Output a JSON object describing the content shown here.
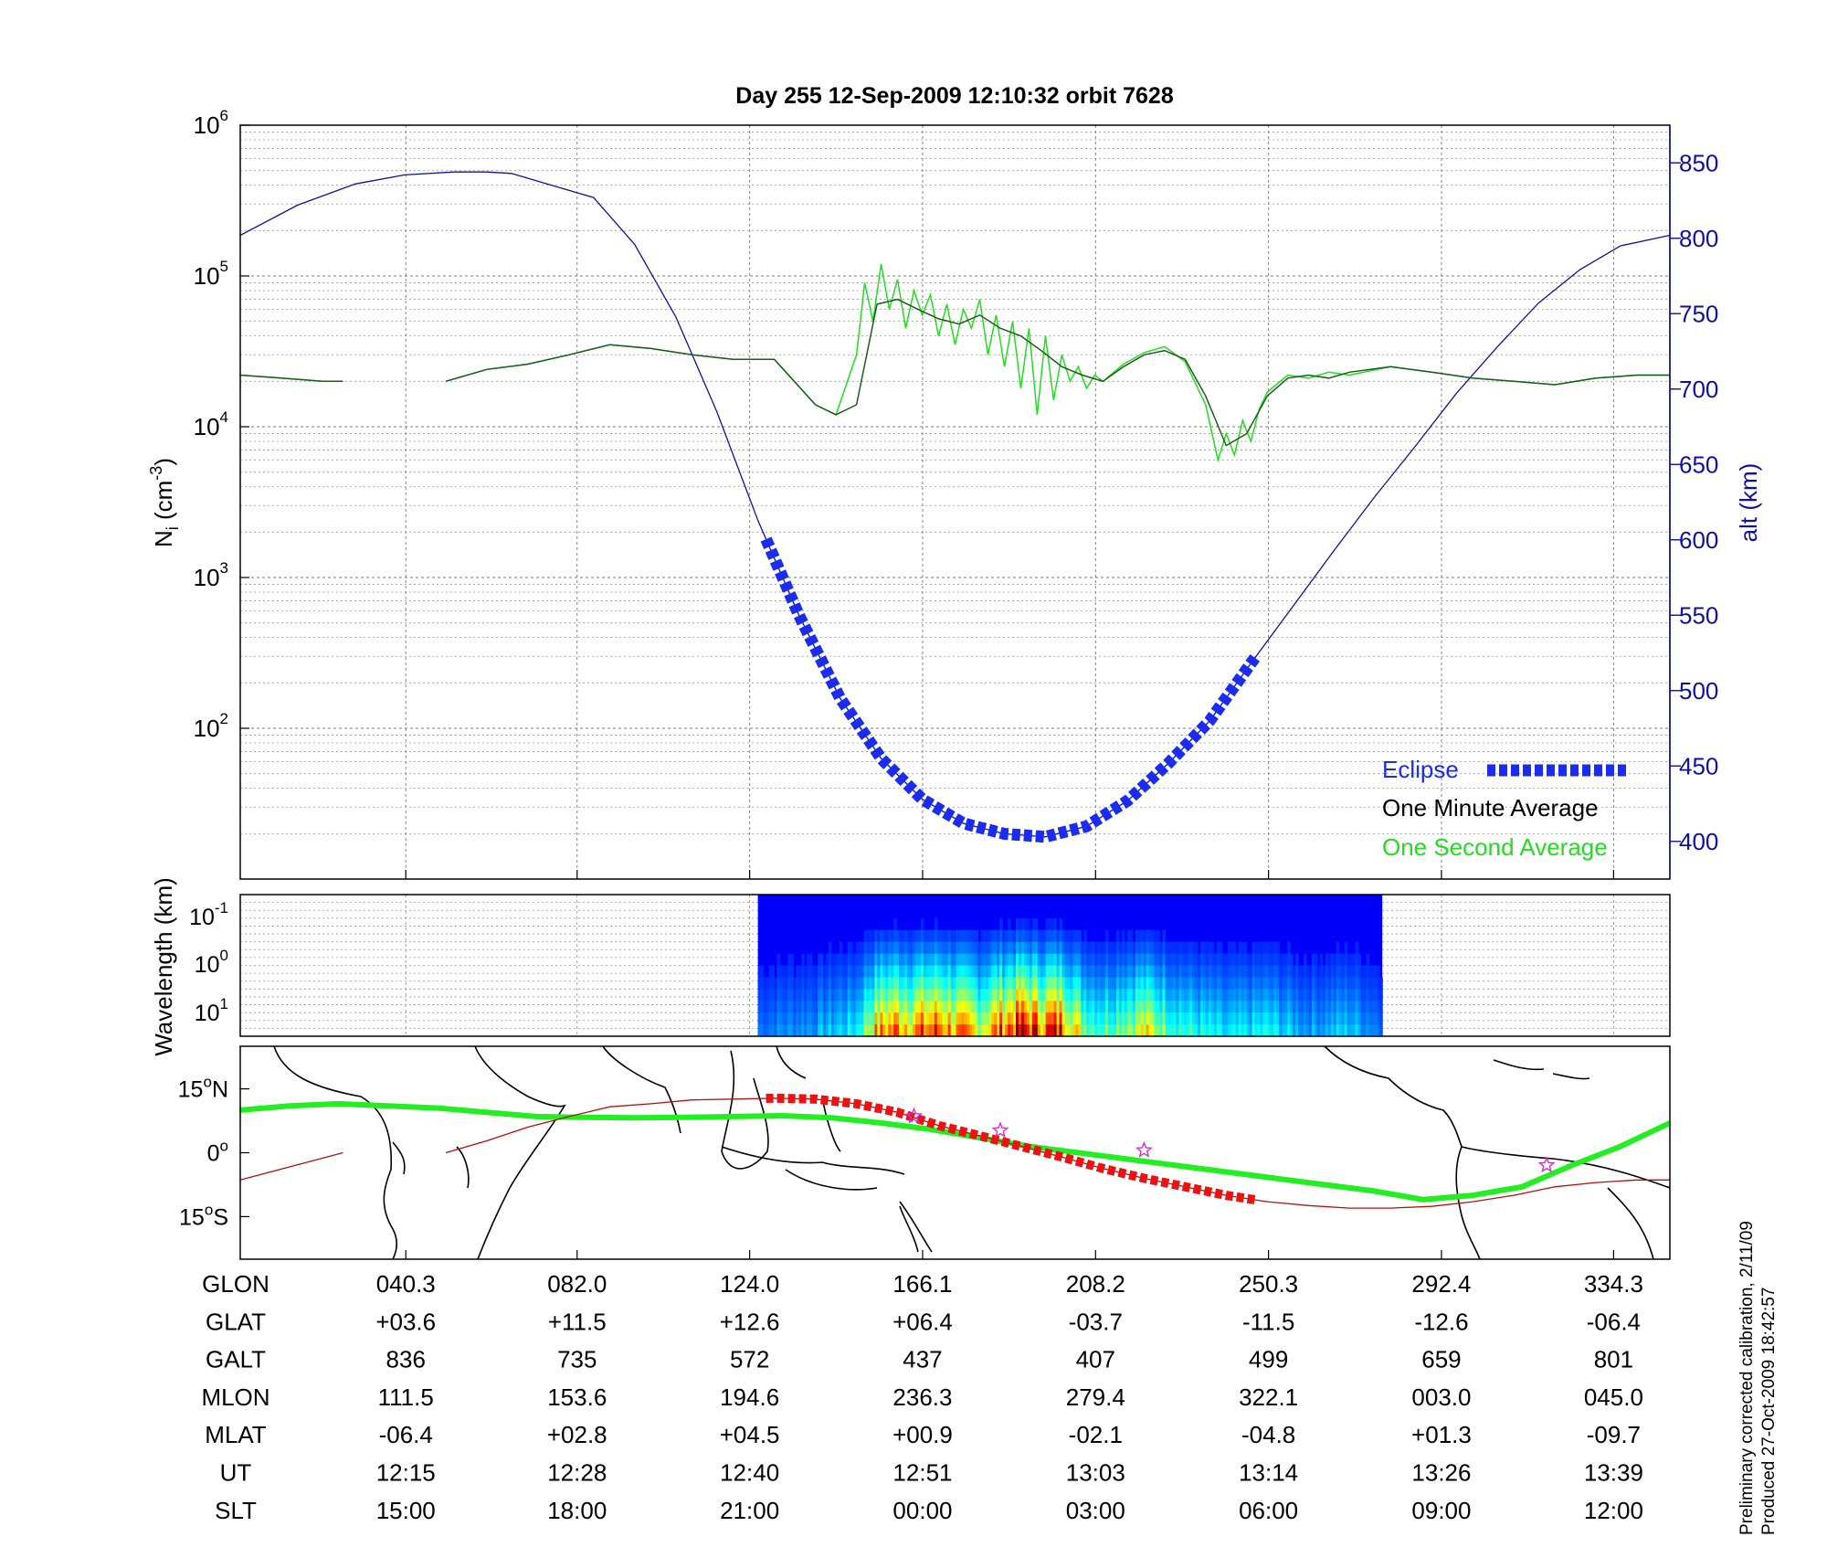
{
  "title": "Day 255  12-Sep-2009 12:10:32   orbit 7628",
  "footnote": {
    "line1": "Preliminary corrected calibration, 2/11/09",
    "line2": "Produced 27-Oct-2009 18:42:57"
  },
  "colors": {
    "altitude": "#1010a0",
    "eclipse": "#1a2cf0",
    "one_minute": "#1f5a1f",
    "one_second": "#22dd22",
    "track_green": "#22ee22",
    "track_eclipse": "#ee1111",
    "track_red_line": "#b01010",
    "stars": "#cc33cc"
  },
  "chart_data": [
    {
      "type": "line",
      "panel": "ion density and altitude",
      "x_label": "",
      "x_range_glon": [
        0,
        348
      ],
      "x_ticks_glon": [
        40.3,
        82.0,
        124.0,
        166.1,
        208.2,
        250.3,
        292.4,
        334.3
      ],
      "y_left": {
        "label_main": "N",
        "label_sub": "i",
        "label_unit": " (cm",
        "label_exp": "-3",
        "label_close": ")",
        "scale": "log",
        "range": [
          10,
          1000000
        ],
        "ticks": [
          {
            "base": "10",
            "exp": "2",
            "value": 100
          },
          {
            "base": "10",
            "exp": "3",
            "value": 1000
          },
          {
            "base": "10",
            "exp": "4",
            "value": 10000
          },
          {
            "base": "10",
            "exp": "5",
            "value": 100000
          },
          {
            "base": "10",
            "exp": "6",
            "value": 1000000
          }
        ]
      },
      "y_right": {
        "label": "alt (km)",
        "range": [
          375,
          875
        ],
        "ticks": [
          400,
          450,
          500,
          550,
          600,
          650,
          700,
          750,
          800,
          850
        ]
      },
      "grid": true,
      "legend_position": "bottom-right",
      "legend": [
        {
          "label": "Eclipse",
          "style": "thick dashed",
          "color_key": "eclipse"
        },
        {
          "label": "One Minute Average",
          "color_key": "one_minute"
        },
        {
          "label": "One Second Average",
          "color_key": "one_second"
        }
      ],
      "altitude_series": {
        "name": "alt (km)",
        "glon": [
          0,
          14,
          28,
          40,
          52,
          60,
          66,
          86,
          96,
          106,
          116,
          126,
          136,
          146,
          156,
          166,
          176,
          186,
          196,
          206,
          216,
          226,
          236,
          246,
          256,
          266,
          276,
          286,
          296,
          306,
          316,
          326,
          336,
          348
        ],
        "alt": [
          802,
          822,
          836,
          842,
          844,
          844,
          843,
          827,
          796,
          748,
          685,
          613,
          550,
          495,
          455,
          428,
          412,
          405,
          403,
          410,
          427,
          452,
          480,
          518,
          555,
          592,
          628,
          662,
          697,
          728,
          757,
          779,
          795,
          802
        ],
        "gap_glon": [
          25,
          50
        ]
      },
      "eclipse_series": {
        "name": "Eclipse",
        "glon_start": 128,
        "glon_end": 247
      },
      "one_minute_series": {
        "name": "One Minute Average",
        "glon": [
          0,
          10,
          20,
          25,
          50,
          60,
          70,
          80,
          90,
          100,
          110,
          120,
          130,
          140,
          145,
          150,
          155,
          160,
          165,
          170,
          175,
          180,
          185,
          190,
          195,
          200,
          205,
          210,
          215,
          220,
          225,
          230,
          235,
          240,
          245,
          250,
          255,
          260,
          265,
          270,
          280,
          290,
          300,
          310,
          320,
          330,
          340,
          348
        ],
        "ni": [
          22000,
          21000,
          20000,
          20000,
          20000,
          24000,
          26000,
          30000,
          35000,
          33000,
          30000,
          28000,
          28000,
          14000,
          12000,
          14000,
          65000,
          70000,
          60000,
          52000,
          48000,
          55000,
          45000,
          40000,
          32000,
          25000,
          22000,
          20000,
          25000,
          30000,
          32000,
          28000,
          16000,
          7500,
          9000,
          16000,
          21000,
          22000,
          21000,
          23000,
          25000,
          23000,
          21000,
          20000,
          19000,
          21000,
          22000,
          22000
        ],
        "gap_glon": [
          25,
          50
        ]
      },
      "one_second_series": {
        "name": "One Second Average",
        "glon": [
          0,
          10,
          20,
          25,
          50,
          60,
          70,
          80,
          90,
          100,
          110,
          120,
          130,
          140,
          145,
          150,
          152,
          154,
          156,
          158,
          160,
          162,
          164,
          166,
          168,
          170,
          172,
          174,
          176,
          178,
          180,
          182,
          184,
          186,
          188,
          190,
          192,
          194,
          196,
          198,
          200,
          202,
          204,
          206,
          208,
          210,
          215,
          220,
          225,
          230,
          235,
          238,
          240,
          242,
          244,
          246,
          248,
          250,
          255,
          260,
          265,
          270,
          280,
          290,
          300,
          310,
          320,
          330,
          340,
          348
        ],
        "ni": [
          22000,
          21000,
          20000,
          20000,
          20000,
          24000,
          26000,
          30000,
          35000,
          33000,
          30000,
          28000,
          28000,
          14000,
          12000,
          30000,
          90000,
          50000,
          120000,
          60000,
          95000,
          45000,
          80000,
          55000,
          75000,
          40000,
          65000,
          35000,
          60000,
          45000,
          70000,
          30000,
          55000,
          25000,
          50000,
          18000,
          45000,
          12000,
          40000,
          15000,
          30000,
          20000,
          25000,
          18000,
          22000,
          20000,
          26000,
          31000,
          34000,
          27000,
          14000,
          6000,
          9000,
          6500,
          11000,
          8000,
          13000,
          17000,
          22000,
          21000,
          23000,
          22000,
          25000,
          23000,
          21000,
          20000,
          19000,
          21000,
          22000,
          22000
        ],
        "gap_glon": [
          25,
          50
        ]
      }
    },
    {
      "type": "heatmap",
      "panel": "spectrogram",
      "y_label": "Wavelength (km)",
      "y_ticks": [
        {
          "base": "10",
          "exp": "-1"
        },
        {
          "base": "10",
          "exp": "0"
        },
        {
          "base": "10",
          "exp": "1"
        }
      ],
      "x_range_glon": [
        126,
        278
      ],
      "colormap": "jet",
      "intensity_profile_glon": [
        126,
        140,
        150,
        155,
        160,
        165,
        170,
        175,
        180,
        185,
        190,
        195,
        200,
        205,
        210,
        220,
        230,
        240,
        250,
        260,
        270,
        278
      ],
      "intensity_profile": [
        0.15,
        0.2,
        0.3,
        0.7,
        0.8,
        0.75,
        0.85,
        0.7,
        0.6,
        0.8,
        0.95,
        0.85,
        0.9,
        0.5,
        0.4,
        0.6,
        0.35,
        0.25,
        0.3,
        0.2,
        0.25,
        0.15
      ]
    },
    {
      "type": "line",
      "panel": "ground track map",
      "y_ticks": [
        {
          "deg": 15,
          "label": "15",
          "suffix": "N"
        },
        {
          "deg": 0,
          "label": "0",
          "suffix": ""
        },
        {
          "deg": -15,
          "label": "15",
          "suffix": "S"
        }
      ],
      "y_range_deg": [
        -25,
        25
      ],
      "magnetic_equator": {
        "glon": [
          0,
          12,
          24,
          36,
          48,
          60,
          72,
          84,
          96,
          108,
          120,
          132,
          144,
          156,
          168,
          180,
          192,
          204,
          216,
          228,
          240,
          252,
          264,
          276,
          288,
          300,
          312,
          324,
          336,
          348
        ],
        "glat": [
          10,
          11,
          11.5,
          11,
          10.5,
          9.5,
          8.5,
          8.3,
          8.2,
          8.3,
          8.5,
          8.7,
          8.2,
          7,
          5.5,
          3.5,
          1.5,
          0,
          -1.5,
          -3,
          -4.5,
          -6,
          -7.5,
          -9,
          -11,
          -10,
          -8,
          -3,
          1.5,
          7
        ]
      },
      "ground_track": {
        "glon": [
          0,
          25,
          50,
          60,
          70,
          80,
          90,
          100,
          110,
          120,
          130,
          140,
          150,
          160,
          170,
          180,
          190,
          200,
          210,
          220,
          230,
          240,
          250,
          260,
          270,
          280,
          290,
          300,
          310,
          320,
          330,
          340,
          348
        ],
        "glat": [
          -6.4,
          0,
          0,
          2.8,
          6,
          8.5,
          10.8,
          11.5,
          12.4,
          12.6,
          12.8,
          12.6,
          11.5,
          9.5,
          6.4,
          4,
          1.5,
          -1,
          -3.7,
          -6,
          -8,
          -10,
          -11.5,
          -12.4,
          -13,
          -13,
          -12.6,
          -11.5,
          -10,
          -8,
          -7,
          -6.4,
          -6.4
        ],
        "gap_glon": [
          25,
          50
        ]
      },
      "eclipse_glon": [
        128,
        247
      ],
      "star_glon": [
        164,
        185,
        220,
        318
      ]
    },
    {
      "type": "table",
      "panel": "orbit coordinates",
      "rows": [
        {
          "label": "GLON",
          "values": [
            "040.3",
            "082.0",
            "124.0",
            "166.1",
            "208.2",
            "250.3",
            "292.4",
            "334.3"
          ]
        },
        {
          "label": "GLAT",
          "values": [
            "+03.6",
            "+11.5",
            "+12.6",
            "+06.4",
            "-03.7",
            "-11.5",
            "-12.6",
            "-06.4"
          ]
        },
        {
          "label": "GALT",
          "values": [
            "836",
            "735",
            "572",
            "437",
            "407",
            "499",
            "659",
            "801"
          ]
        },
        {
          "label": "MLON",
          "values": [
            "111.5",
            "153.6",
            "194.6",
            "236.3",
            "279.4",
            "322.1",
            "003.0",
            "045.0"
          ]
        },
        {
          "label": "MLAT",
          "values": [
            "-06.4",
            "+02.8",
            "+04.5",
            "+00.9",
            "-02.1",
            "-04.8",
            "+01.3",
            "-09.7"
          ]
        },
        {
          "label": "UT",
          "values": [
            "12:15",
            "12:28",
            "12:40",
            "12:51",
            "13:03",
            "13:14",
            "13:26",
            "13:39"
          ]
        },
        {
          "label": "SLT",
          "values": [
            "15:00",
            "18:00",
            "21:00",
            "00:00",
            "03:00",
            "06:00",
            "09:00",
            "12:00"
          ]
        }
      ]
    }
  ]
}
